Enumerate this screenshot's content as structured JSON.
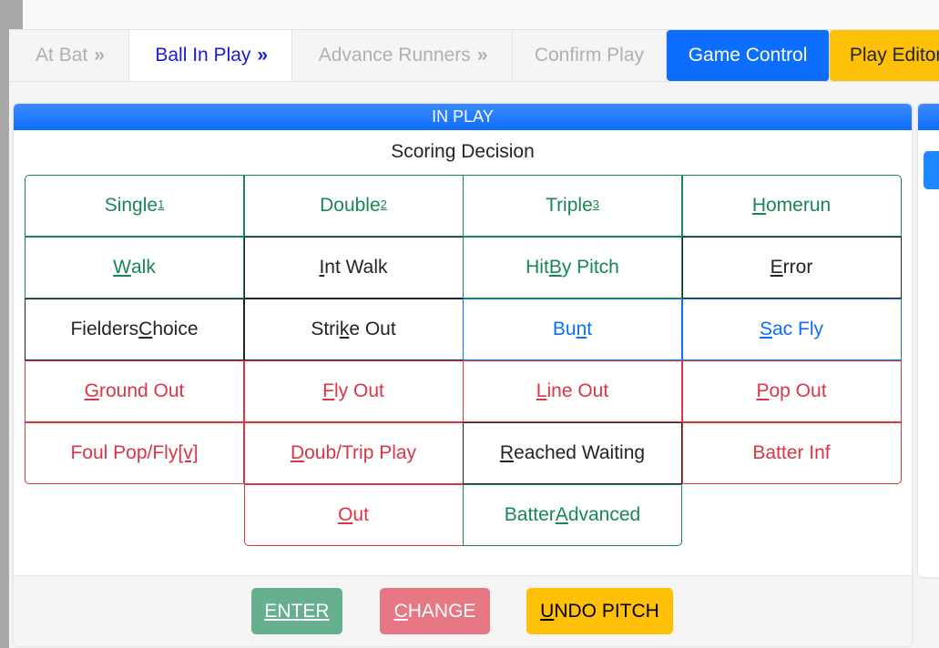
{
  "tabs": [
    {
      "label": "At Bat",
      "chevron": "»",
      "state": "inactive"
    },
    {
      "label": "Ball In Play",
      "chevron": "»",
      "state": "active"
    },
    {
      "label": "Advance Runners",
      "chevron": "»",
      "state": "inactive"
    },
    {
      "label": "Confirm Play",
      "state": "inactive"
    },
    {
      "label": "Game Control",
      "state": "blue"
    },
    {
      "label": "Play Editor",
      "state": "yellow"
    }
  ],
  "card": {
    "title": "IN PLAY",
    "subtitle": "Scoring Decision"
  },
  "colors": {
    "green": "#198754",
    "dark": "#212529",
    "blue": "#0d6efd",
    "red": "#dc3545",
    "yellow": "#ffc107"
  },
  "grid": [
    {
      "pre": "Single",
      "key": "",
      "post": "",
      "sup": "1",
      "color": "green"
    },
    {
      "pre": "Double",
      "key": "",
      "post": "",
      "sup": "2",
      "color": "green"
    },
    {
      "pre": "Triple",
      "key": "",
      "post": "",
      "sup": "3",
      "color": "green"
    },
    {
      "pre": "",
      "key": "H",
      "post": "omerun",
      "color": "green"
    },
    {
      "pre": "",
      "key": "W",
      "post": "alk",
      "color": "green"
    },
    {
      "pre": "",
      "key": "I",
      "post": "nt Walk",
      "color": "dark"
    },
    {
      "pre": "Hit ",
      "key": "B",
      "post": "y Pitch",
      "color": "green"
    },
    {
      "pre": "",
      "key": "E",
      "post": "rror",
      "color": "dark"
    },
    {
      "pre": "Fielders ",
      "key": "C",
      "post": "hoice",
      "color": "dark"
    },
    {
      "pre": "Stri",
      "key": "k",
      "post": "e Out",
      "color": "dark"
    },
    {
      "pre": "Bu",
      "key": "n",
      "post": "t",
      "color": "blue"
    },
    {
      "pre": "",
      "key": "S",
      "post": "ac Fly",
      "color": "blue"
    },
    {
      "pre": "",
      "key": "G",
      "post": "round Out",
      "color": "red"
    },
    {
      "pre": "",
      "key": "F",
      "post": "ly Out",
      "color": "red"
    },
    {
      "pre": "",
      "key": "L",
      "post": "ine Out",
      "color": "red"
    },
    {
      "pre": "",
      "key": "P",
      "post": "op Out",
      "color": "red"
    },
    {
      "pre": "Foul Pop/Fly",
      "key": "[v]",
      "post": "",
      "color": "red"
    },
    {
      "pre": "",
      "key": "D",
      "post": "oub/Trip Play",
      "color": "red"
    },
    {
      "pre": "",
      "key": "R",
      "post": "eached Waiting",
      "color": "dark"
    },
    {
      "pre": "Batter Inf",
      "key": "",
      "post": "",
      "color": "red"
    },
    {
      "pre": "",
      "key": "O",
      "post": "ut",
      "color": "red",
      "col": 1
    },
    {
      "pre": "Batter ",
      "key": "A",
      "post": "dvanced",
      "color": "green",
      "col": 2
    }
  ],
  "footer": [
    {
      "pre": "",
      "key": "ENTER",
      "post": "",
      "bg": "#66b08f",
      "fg": "#ffffff"
    },
    {
      "pre": "",
      "key": "C",
      "post": "HANGE",
      "bg": "#e57883",
      "fg": "#ffffff"
    },
    {
      "pre": "",
      "key": "U",
      "post": "NDO PITCH",
      "bg": "#ffc107",
      "fg": "#000000"
    }
  ]
}
